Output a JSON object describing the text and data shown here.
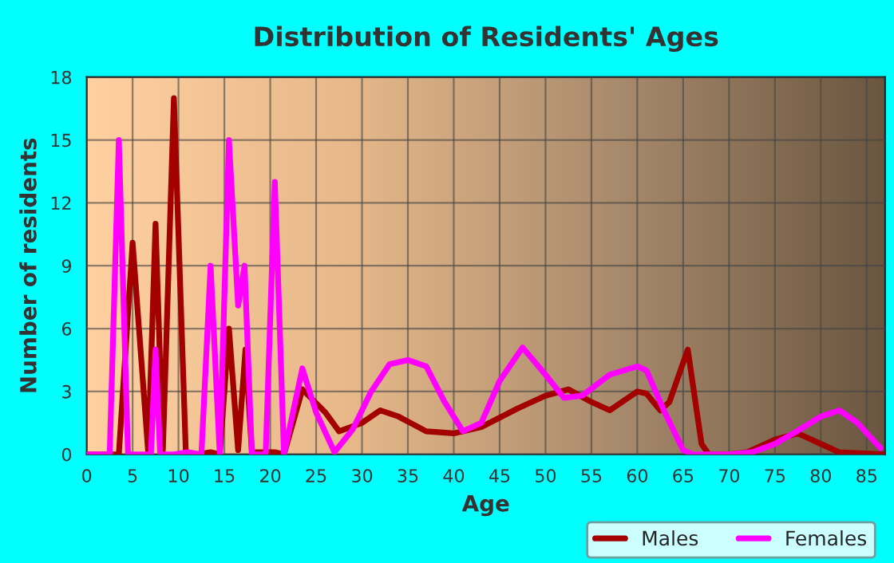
{
  "chart_data": {
    "type": "line",
    "title": "Distribution of Residents' Ages",
    "xlabel": "Age",
    "ylabel": "Number of residents",
    "xlim": [
      0,
      87
    ],
    "xticks": [
      0,
      5,
      10,
      15,
      20,
      25,
      30,
      35,
      40,
      45,
      50,
      55,
      60,
      65,
      70,
      75,
      80,
      85
    ],
    "ylim": [
      0,
      18
    ],
    "yticks": [
      0,
      3,
      6,
      9,
      12,
      15,
      18
    ],
    "grid": true,
    "legend": "bottom right",
    "series": [
      {
        "name": "Males",
        "color": "#a30000",
        "x": [
          0,
          3.5,
          5,
          6.7,
          7.5,
          8.3,
          9.5,
          10.8,
          12,
          13.5,
          14.5,
          15.5,
          16.5,
          17.3,
          18,
          20.5,
          21.5,
          23.5,
          26,
          27.5,
          30,
          32,
          34,
          37,
          40,
          43,
          47,
          50,
          52.5,
          55,
          57,
          60,
          61,
          62.5,
          63.5,
          65.5,
          67,
          67.8,
          70,
          72,
          75,
          77.5,
          80,
          82,
          87
        ],
        "values": [
          0,
          0,
          10.1,
          0.1,
          11,
          0.2,
          17,
          0.1,
          0,
          0.1,
          0,
          6,
          0.2,
          5,
          0.1,
          0.1,
          0,
          3.1,
          2,
          1.1,
          1.5,
          2.1,
          1.8,
          1.1,
          1,
          1.3,
          2.2,
          2.8,
          3.1,
          2.5,
          2.1,
          3,
          2.9,
          2.1,
          2.5,
          5,
          0.5,
          0,
          0,
          0.1,
          0.7,
          1,
          0.5,
          0.1,
          0
        ]
      },
      {
        "name": "Females",
        "color": "#ff00ff",
        "x": [
          0,
          2.5,
          3.5,
          4.5,
          7,
          7.5,
          8,
          9.5,
          11,
          12.5,
          13.5,
          14.5,
          15.5,
          16.5,
          17.2,
          18,
          19.5,
          20.5,
          21.5,
          23.5,
          25,
          27,
          29,
          31,
          33,
          35,
          37,
          39,
          41,
          43,
          45,
          47.5,
          50,
          52,
          54,
          57,
          60,
          61,
          63,
          65,
          66,
          70,
          72.5,
          75,
          77,
          80,
          82,
          84,
          86.5
        ],
        "values": [
          0,
          0,
          15,
          0,
          0,
          5,
          0,
          0,
          0.1,
          0,
          9,
          0,
          15,
          7.1,
          9,
          0,
          0,
          13,
          0,
          4.1,
          2,
          0.1,
          1.2,
          3,
          4.3,
          4.5,
          4.2,
          2.5,
          1.1,
          1.5,
          3.5,
          5.1,
          3.8,
          2.7,
          2.8,
          3.8,
          4.2,
          4,
          2,
          0.2,
          0,
          0,
          0.1,
          0.5,
          1,
          1.8,
          2.1,
          1.5,
          0.3
        ]
      }
    ]
  }
}
